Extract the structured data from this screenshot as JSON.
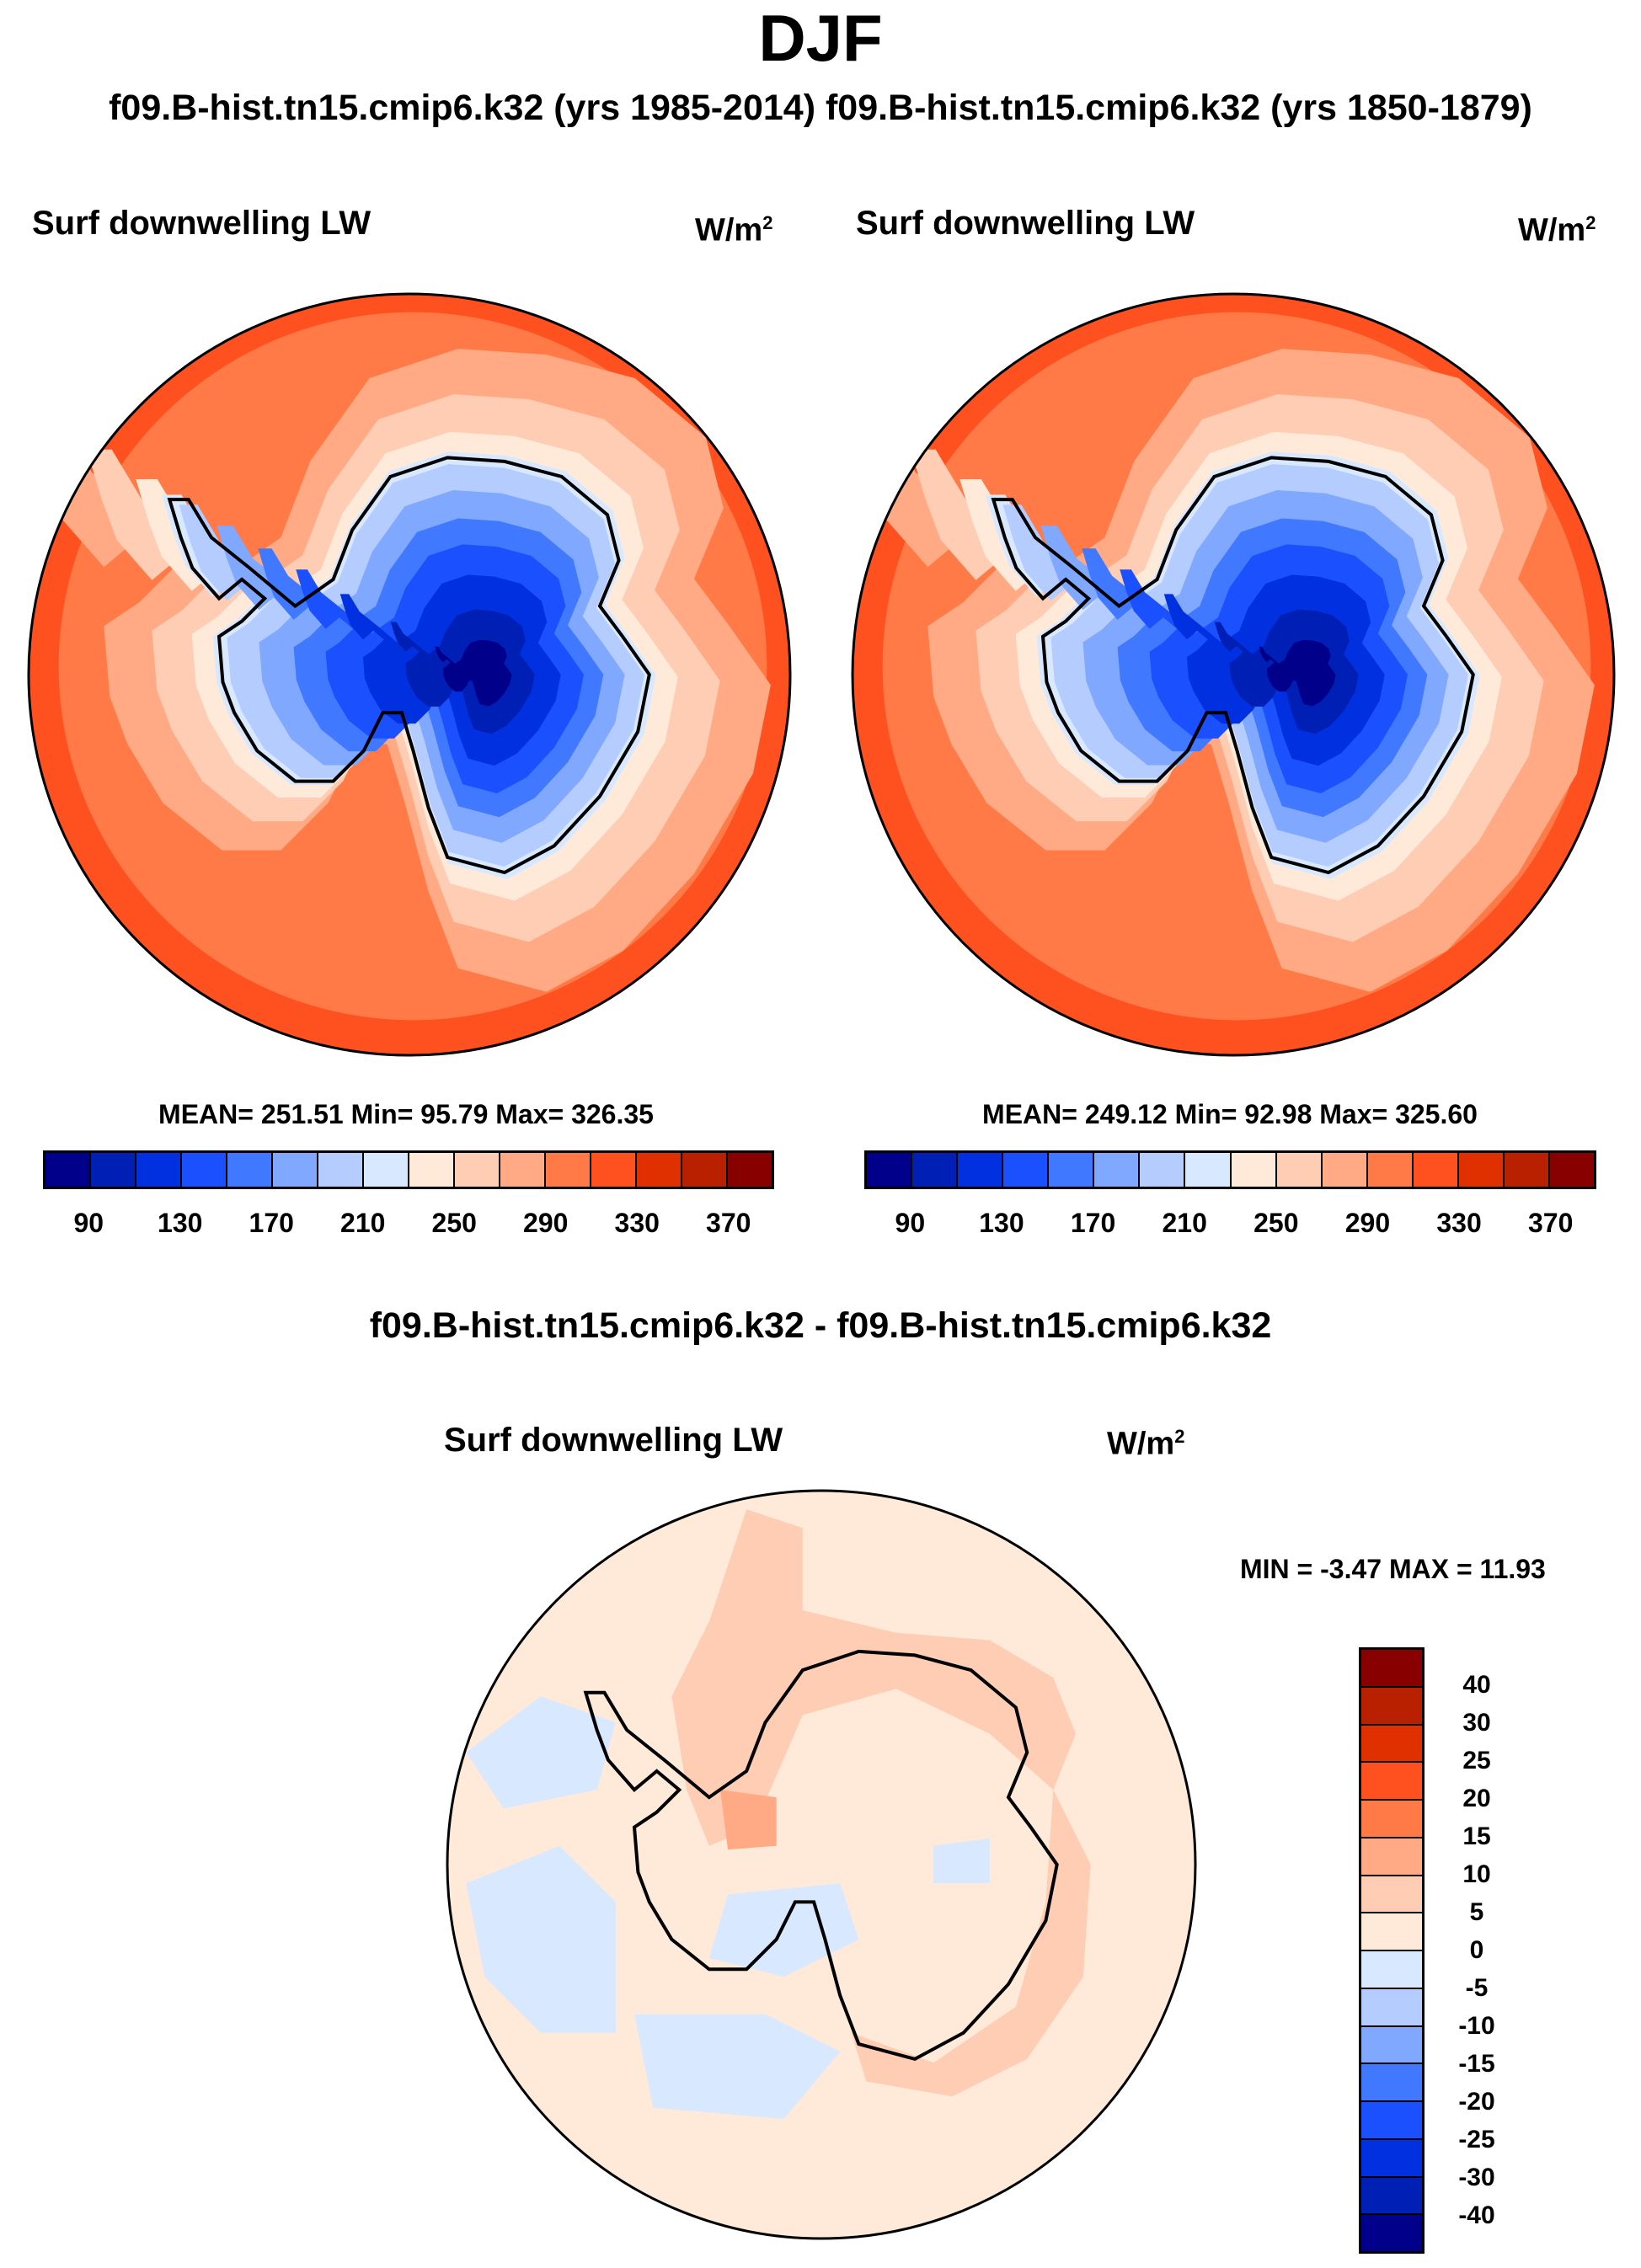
{
  "title": "DJF",
  "subtitle": "f09.B-hist.tn15.cmip6.k32 (yrs 1985-2014) f09.B-hist.tn15.cmip6.k32 (yrs 1850-1879)",
  "chart_data": [
    {
      "type": "heatmap",
      "projection": "south-polar-stereographic",
      "title": "Surf downwelling LW",
      "units": "W/m",
      "units_exp": "2",
      "case": "f09.B-hist.tn15.cmip6.k32 (yrs 1985-2014)",
      "stats": "MEAN= 251.51  Min=  95.79  Max= 326.35",
      "mean": 251.51,
      "min": 95.79,
      "max": 326.35,
      "levels": [
        90,
        110,
        130,
        150,
        170,
        190,
        210,
        230,
        250,
        270,
        290,
        310,
        330,
        350,
        370
      ],
      "tick_labels": [
        "90",
        "130",
        "170",
        "210",
        "250",
        "290",
        "330",
        "370"
      ]
    },
    {
      "type": "heatmap",
      "projection": "south-polar-stereographic",
      "title": "Surf downwelling LW",
      "units": "W/m",
      "units_exp": "2",
      "case": "f09.B-hist.tn15.cmip6.k32 (yrs 1850-1879)",
      "stats": "MEAN= 249.12  Min=  92.98  Max= 325.60",
      "mean": 249.12,
      "min": 92.98,
      "max": 325.6,
      "levels": [
        90,
        110,
        130,
        150,
        170,
        190,
        210,
        230,
        250,
        270,
        290,
        310,
        330,
        350,
        370
      ],
      "tick_labels": [
        "90",
        "130",
        "170",
        "210",
        "250",
        "290",
        "330",
        "370"
      ]
    },
    {
      "type": "heatmap",
      "projection": "south-polar-stereographic",
      "heading": "f09.B-hist.tn15.cmip6.k32 - f09.B-hist.tn15.cmip6.k32",
      "title": "Surf downwelling LW",
      "units": "W/m",
      "units_exp": "2",
      "stats": "MIN =  -3.47 MAX =  11.93",
      "min": -3.47,
      "max": 11.93,
      "levels": [
        -40,
        -30,
        -25,
        -20,
        -15,
        -10,
        -5,
        0,
        5,
        10,
        15,
        20,
        25,
        30,
        40
      ],
      "tick_labels": [
        "40",
        "30",
        "25",
        "20",
        "15",
        "10",
        "5",
        "0",
        "-5",
        "-10",
        "-15",
        "-20",
        "-25",
        "-30",
        "-40"
      ]
    }
  ],
  "colors": [
    "#00008b",
    "#0020b5",
    "#0030e0",
    "#1a50ff",
    "#4078ff",
    "#80a8ff",
    "#b4ccff",
    "#d8e8ff",
    "#ffeada",
    "#ffccb4",
    "#ffaa84",
    "#ff7a46",
    "#ff5020",
    "#e03000",
    "#b82000",
    "#880000"
  ]
}
